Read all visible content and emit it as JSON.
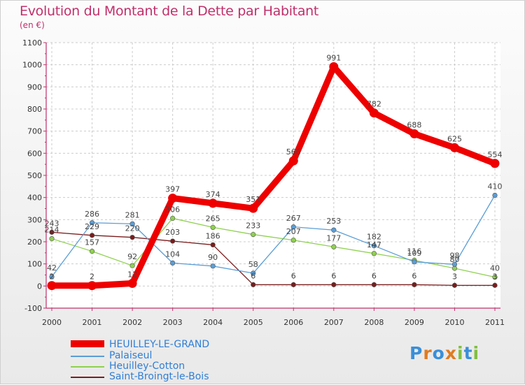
{
  "title": "Evolution du Montant de la Dette par Habitant",
  "unit": "(en €)",
  "logo": "Proxiti",
  "chart_data": {
    "type": "line",
    "title": "Evolution du Montant de la Dette par Habitant",
    "ylabel": "(en €)",
    "xlabel": "",
    "x": [
      "2000",
      "2001",
      "2002",
      "2003",
      "2004",
      "2005",
      "2006",
      "2007",
      "2008",
      "2009",
      "2010",
      "2011"
    ],
    "ylim": [
      -100,
      1100
    ],
    "yticks": [
      "-100",
      "0",
      "100",
      "200",
      "300",
      "400",
      "500",
      "600",
      "700",
      "800",
      "900",
      "1000",
      "1100"
    ],
    "grid": true,
    "series": [
      {
        "name": "HEUILLEY-LE-GRAND",
        "color": "#ee0000",
        "values": [
          2,
          2,
          12,
          397,
          374,
          351,
          566,
          991,
          782,
          688,
          625,
          554
        ],
        "labels": [
          "2",
          "2",
          "12",
          "397",
          "374",
          "351",
          "566",
          "991",
          "782",
          "688",
          "625",
          "554"
        ]
      },
      {
        "name": "Palaiseul",
        "color": "#5a9ed6",
        "values": [
          42,
          286,
          281,
          104,
          90,
          58,
          267,
          253,
          182,
          109,
          98,
          410
        ],
        "labels": [
          "42",
          "286",
          "281",
          "104",
          "90",
          "58",
          "267",
          "253",
          "182",
          "109",
          "98",
          "410"
        ]
      },
      {
        "name": "Heuilley-Cotton",
        "color": "#8fd14f",
        "values": [
          214,
          157,
          92,
          306,
          265,
          233,
          207,
          177,
          147,
          116,
          80,
          40
        ],
        "labels": [
          "214",
          "157",
          "92",
          "306",
          "265",
          "233",
          "207",
          "177",
          "147",
          "116",
          "80",
          "40"
        ]
      },
      {
        "name": "Saint-Broingt-le-Bois",
        "color": "#7a1c1c",
        "values": [
          243,
          229,
          220,
          203,
          186,
          6,
          6,
          6,
          6,
          6,
          3,
          3
        ],
        "labels": [
          "243",
          "229",
          "220",
          "203",
          "186",
          "6",
          "6",
          "6",
          "6",
          "6",
          "3",
          "3"
        ]
      }
    ]
  }
}
